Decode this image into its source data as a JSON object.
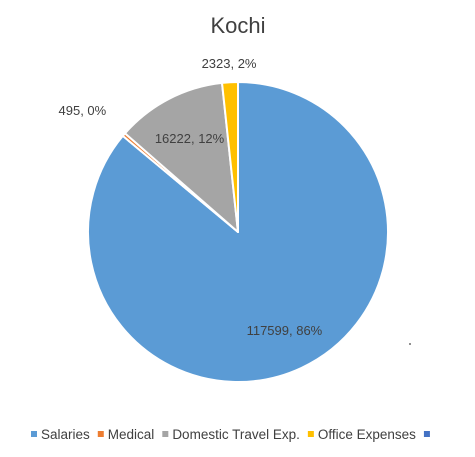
{
  "chart_data": {
    "type": "pie",
    "title": "Kochi",
    "categories": [
      "Salaries",
      "Medical",
      "Domestic Travel Exp.",
      "Office Expenses",
      ""
    ],
    "values": [
      117599,
      495,
      16222,
      2323,
      0
    ],
    "data_labels": [
      "117599, 86%",
      "",
      "16222, 12%",
      "2323, 2%",
      ""
    ],
    "outside_labels": [
      "",
      "495, 0%",
      "",
      "",
      ""
    ],
    "colors": [
      "#5B9BD5",
      "#ED7D31",
      "#A5A5A5",
      "#FFC000",
      "#4472C4"
    ],
    "legend_position": "bottom",
    "start_angle_deg": 0,
    "direction": "clockwise"
  }
}
